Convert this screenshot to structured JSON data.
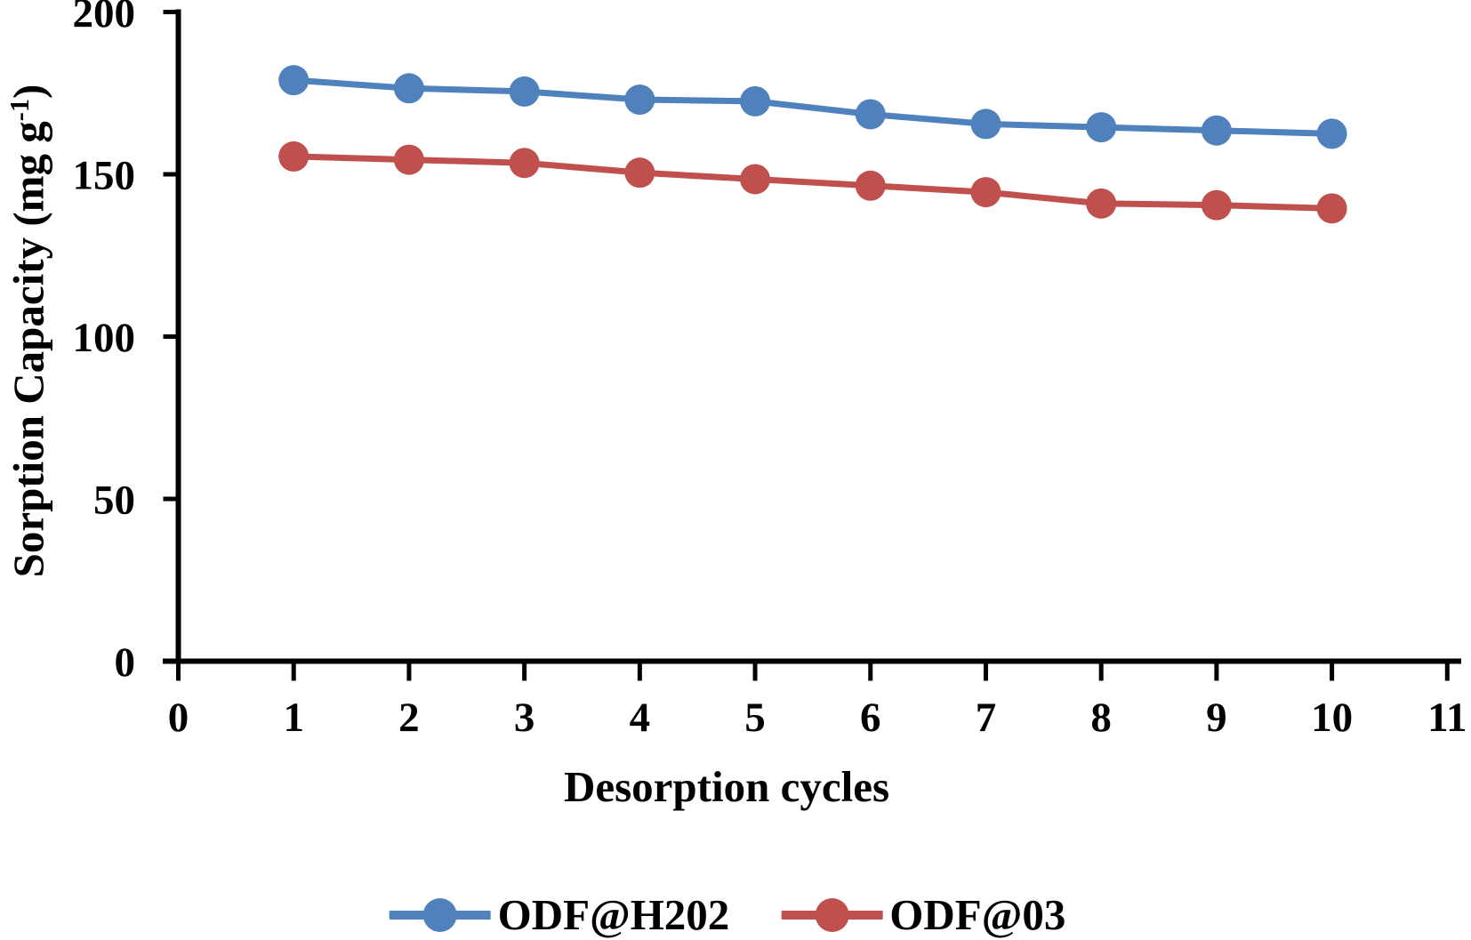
{
  "chart_data": {
    "type": "line",
    "title": "",
    "xlabel": "Desorption cycles",
    "ylabel": "Sorption Capacity (mg g⁻¹)",
    "ylabel_parts": {
      "main": "Sorption Capacity (mg g",
      "sup": "-1",
      "close": ")"
    },
    "x": [
      1,
      2,
      3,
      4,
      5,
      6,
      7,
      8,
      9,
      10
    ],
    "series": [
      {
        "name": "ODF@H202",
        "color": "#4F81BD",
        "values": [
          179,
          176.5,
          175.5,
          173,
          172.5,
          168.5,
          165.5,
          164.5,
          163.5,
          162.5
        ]
      },
      {
        "name": "ODF@03",
        "color": "#C0504D",
        "values": [
          155.5,
          154.5,
          153.5,
          150.5,
          148.5,
          146.5,
          144.5,
          141,
          140.5,
          139.5
        ]
      }
    ],
    "xlim": [
      0,
      11
    ],
    "ylim": [
      0,
      200
    ],
    "x_ticks": [
      0,
      1,
      2,
      3,
      4,
      5,
      6,
      7,
      8,
      9,
      10,
      11
    ],
    "y_ticks": [
      0,
      50,
      100,
      150,
      200
    ],
    "grid": false,
    "legend_position": "bottom",
    "axis_color": "#000000",
    "marker": "circle"
  }
}
